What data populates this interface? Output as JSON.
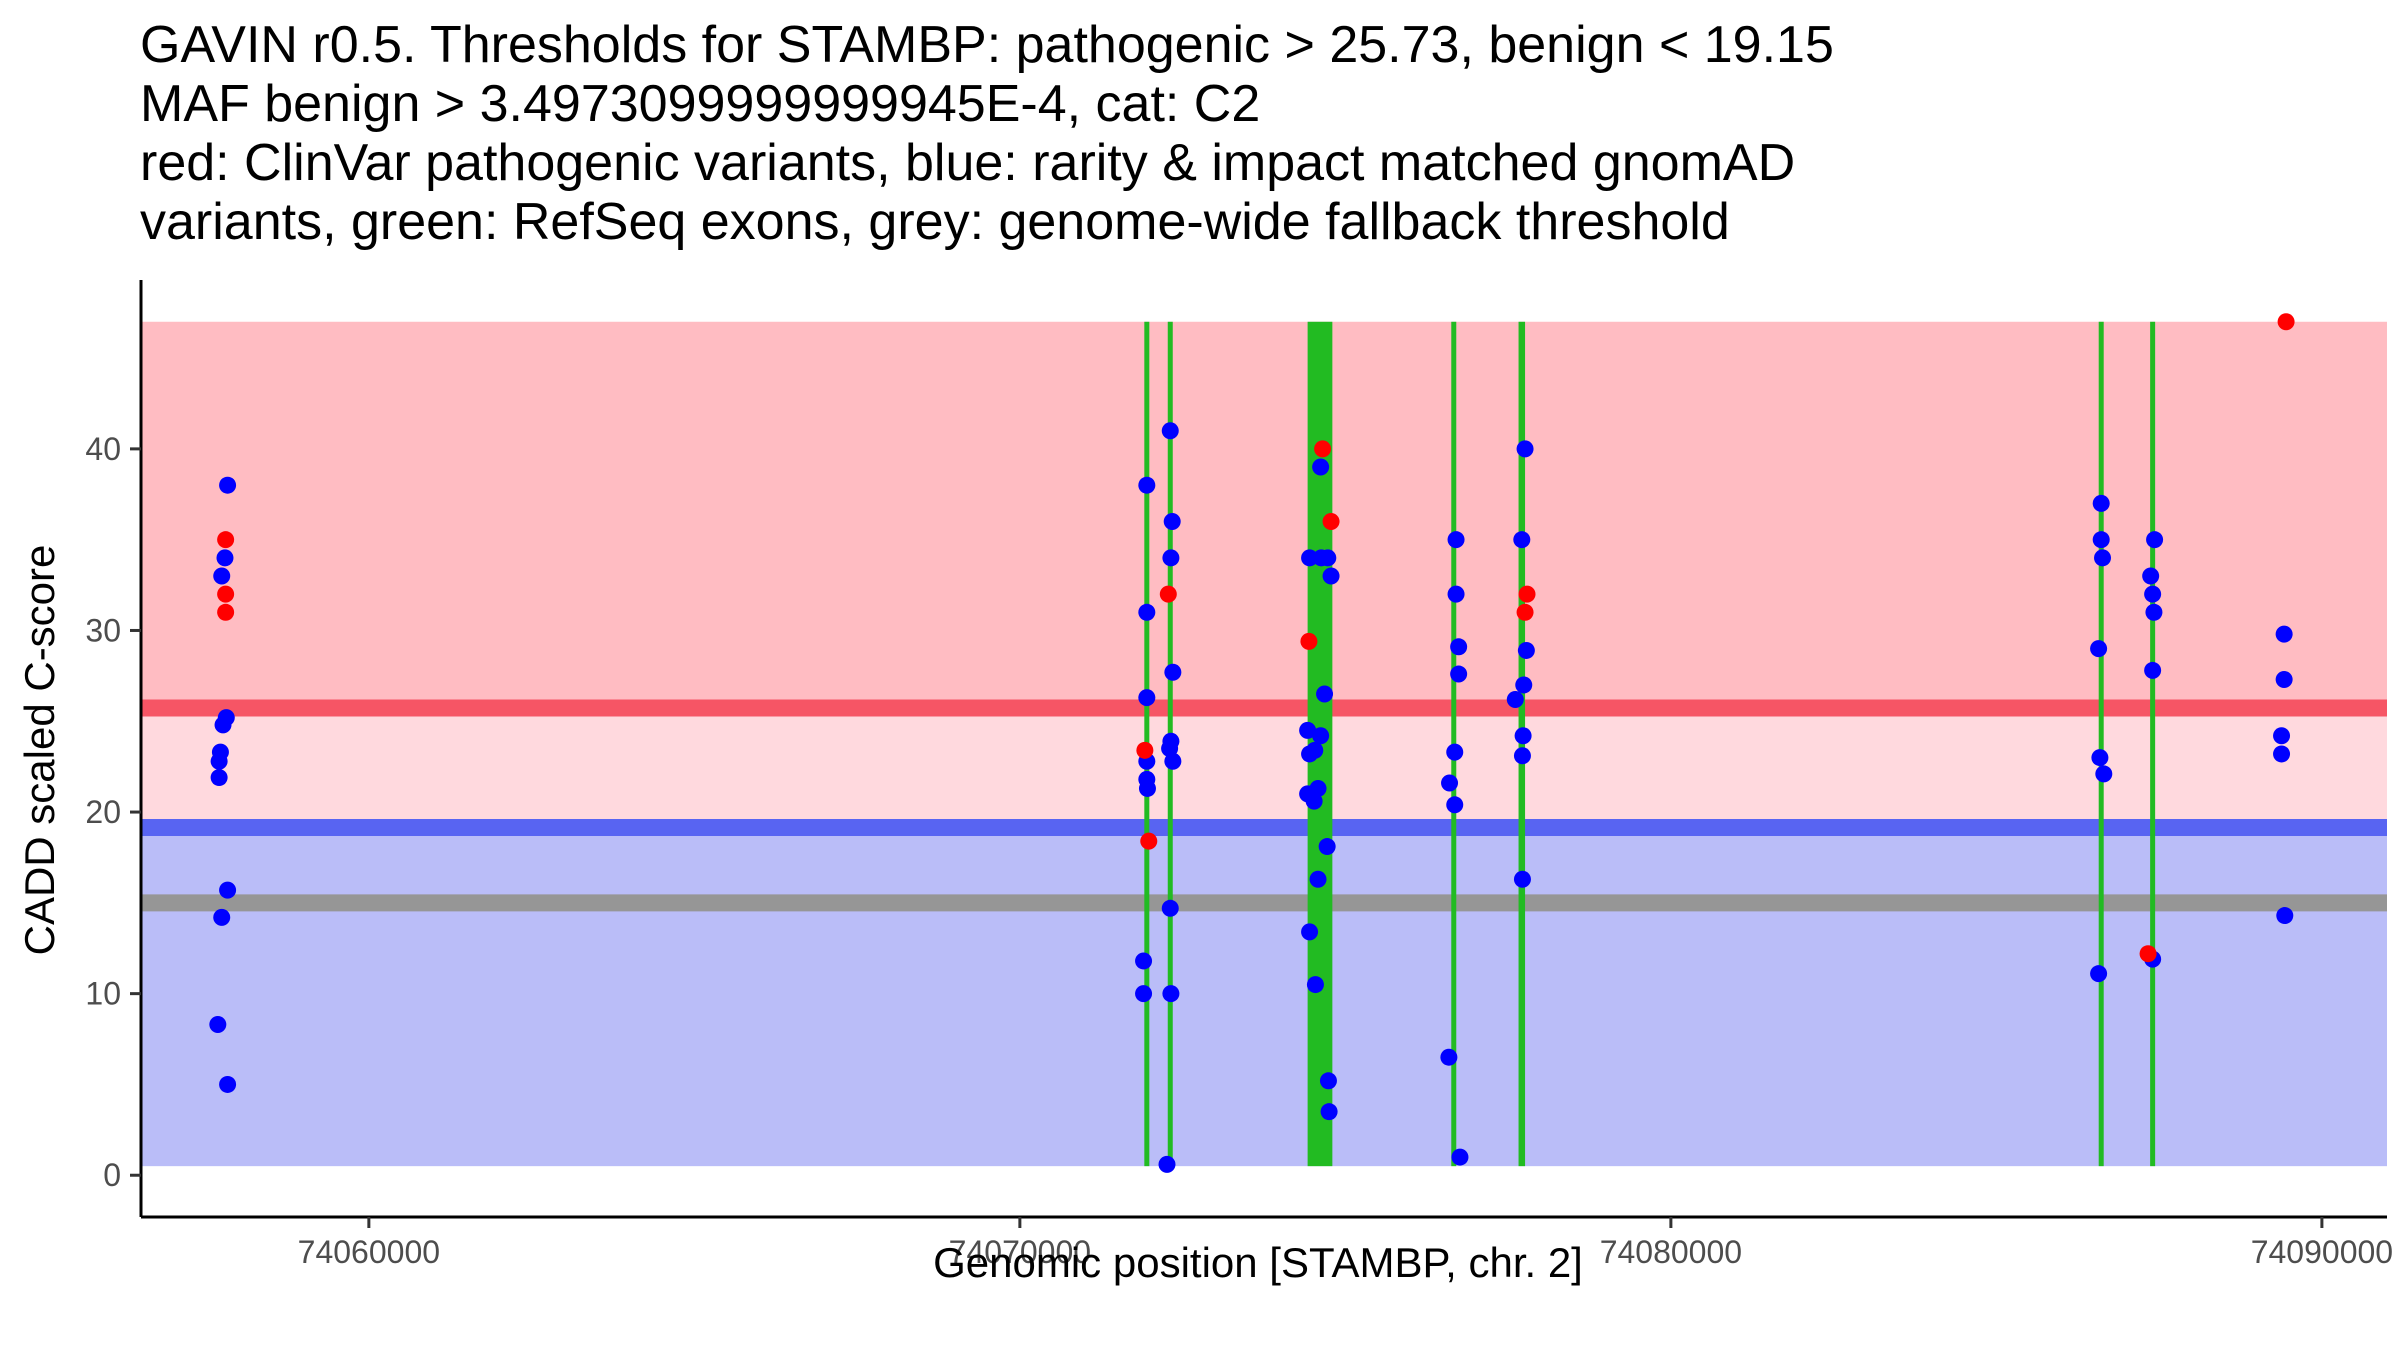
{
  "chart_data": {
    "type": "scatter",
    "title_lines": [
      "GAVIN r0.5. Thresholds for STAMBP: pathogenic > 25.73, benign < 19.15",
      "MAF benign > 3.4973099999999945E-4, cat: C2",
      "red: ClinVar pathogenic variants, blue: rarity & impact matched gnomAD",
      "variants, green: RefSeq exons, grey: genome-wide fallback threshold"
    ],
    "xlabel": "Genomic position [STAMBP, chr. 2]",
    "ylabel": "CADD scaled C-score",
    "xlim": [
      74056500,
      74091000
    ],
    "ylim": [
      -2.3,
      49.3
    ],
    "x_ticks": [
      74060000,
      74070000,
      74080000,
      74090000
    ],
    "y_ticks": [
      0,
      10,
      20,
      30,
      40
    ],
    "thresholds": {
      "pathogenic": 25.73,
      "benign": 19.15,
      "fallback": 15.0,
      "band_top": 47.0,
      "band_bottom": 0.5
    },
    "colors": {
      "pathogenic_band": "#ffbcc2",
      "mid_band": "#ffd9de",
      "benign_band": "#babdf8",
      "pathogenic_line": "#f65565",
      "benign_line": "#5864f2",
      "fallback_line": "#969696",
      "exon": "#22bb22",
      "clinvar": "#ff0000",
      "gnomad": "#0000ff",
      "axis": "#000000"
    },
    "exons": [
      [
        74071925,
        74071975
      ],
      [
        74072280,
        74072340
      ],
      [
        74074420,
        74074800
      ],
      [
        74076630,
        74076700
      ],
      [
        74077660,
        74077760
      ],
      [
        74086580,
        74086640
      ],
      [
        74087370,
        74087430
      ]
    ],
    "series": [
      {
        "name": "gnomAD",
        "color": "#0000ff",
        "points": [
          [
            74057830,
            38
          ],
          [
            74057790,
            34
          ],
          [
            74057740,
            33
          ],
          [
            74057810,
            25.2
          ],
          [
            74057760,
            24.8
          ],
          [
            74057720,
            23.3
          ],
          [
            74057700,
            22.8
          ],
          [
            74057700,
            21.9
          ],
          [
            74057830,
            15.7
          ],
          [
            74057740,
            14.2
          ],
          [
            74057680,
            8.3
          ],
          [
            74057830,
            5.0
          ],
          [
            74071950,
            38
          ],
          [
            74071950,
            31
          ],
          [
            74071950,
            26.3
          ],
          [
            74071950,
            22.8
          ],
          [
            74071950,
            21.8
          ],
          [
            74071960,
            21.3
          ],
          [
            74071900,
            11.8
          ],
          [
            74071900,
            10.0
          ],
          [
            74072310,
            41
          ],
          [
            74072340,
            36
          ],
          [
            74072320,
            34
          ],
          [
            74072350,
            27.7
          ],
          [
            74072320,
            23.9
          ],
          [
            74072300,
            23.5
          ],
          [
            74072350,
            22.8
          ],
          [
            74072310,
            14.7
          ],
          [
            74072320,
            10.0
          ],
          [
            74072260,
            0.6
          ],
          [
            74074450,
            34
          ],
          [
            74074630,
            34
          ],
          [
            74074730,
            34
          ],
          [
            74074780,
            33
          ],
          [
            74074620,
            39
          ],
          [
            74074680,
            26.5
          ],
          [
            74074420,
            24.5
          ],
          [
            74074620,
            24.2
          ],
          [
            74074450,
            23.2
          ],
          [
            74074530,
            23.4
          ],
          [
            74074420,
            21.0
          ],
          [
            74074580,
            21.3
          ],
          [
            74074520,
            20.6
          ],
          [
            74074720,
            18.1
          ],
          [
            74074580,
            16.3
          ],
          [
            74074450,
            13.4
          ],
          [
            74074540,
            10.5
          ],
          [
            74074740,
            5.2
          ],
          [
            74074750,
            3.5
          ],
          [
            74076700,
            35
          ],
          [
            74076700,
            32
          ],
          [
            74076740,
            29.1
          ],
          [
            74076740,
            27.6
          ],
          [
            74076680,
            23.3
          ],
          [
            74076600,
            21.6
          ],
          [
            74076680,
            20.4
          ],
          [
            74076590,
            6.5
          ],
          [
            74076760,
            1.0
          ],
          [
            74077710,
            35
          ],
          [
            74077760,
            40
          ],
          [
            74077780,
            28.9
          ],
          [
            74077740,
            27.0
          ],
          [
            74077610,
            26.2
          ],
          [
            74077730,
            24.2
          ],
          [
            74077720,
            23.1
          ],
          [
            74077720,
            16.3
          ],
          [
            74086610,
            37
          ],
          [
            74086610,
            35
          ],
          [
            74086630,
            34
          ],
          [
            74086570,
            29
          ],
          [
            74086590,
            23.0
          ],
          [
            74086650,
            22.1
          ],
          [
            74086570,
            11.1
          ],
          [
            74087370,
            33
          ],
          [
            74087430,
            35
          ],
          [
            74087400,
            32
          ],
          [
            74087420,
            31
          ],
          [
            74087400,
            27.8
          ],
          [
            74087400,
            11.9
          ],
          [
            74089420,
            29.8
          ],
          [
            74089420,
            27.3
          ],
          [
            74089380,
            24.2
          ],
          [
            74089380,
            23.2
          ],
          [
            74089430,
            14.3
          ]
        ]
      },
      {
        "name": "ClinVar",
        "color": "#ff0000",
        "points": [
          [
            74057800,
            35
          ],
          [
            74057800,
            32
          ],
          [
            74057800,
            31
          ],
          [
            74071920,
            23.4
          ],
          [
            74071980,
            18.4
          ],
          [
            74072280,
            32
          ],
          [
            74074650,
            40
          ],
          [
            74074780,
            36
          ],
          [
            74074440,
            29.4
          ],
          [
            74077790,
            32
          ],
          [
            74077760,
            31
          ],
          [
            74087330,
            12.2
          ],
          [
            74089450,
            47
          ]
        ]
      }
    ]
  }
}
